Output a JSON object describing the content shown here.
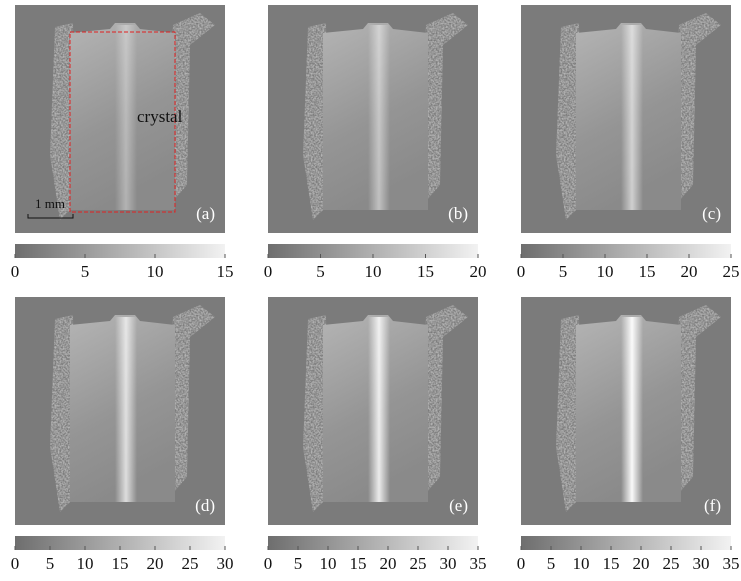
{
  "panels": [
    {
      "label": "(a)",
      "colorbar_ticks": [
        0,
        5,
        10,
        15
      ]
    },
    {
      "label": "(b)",
      "colorbar_ticks": [
        0,
        5,
        10,
        15,
        20
      ]
    },
    {
      "label": "(c)",
      "colorbar_ticks": [
        0,
        5,
        10,
        15,
        20,
        25
      ]
    },
    {
      "label": "(d)",
      "colorbar_ticks": [
        0,
        5,
        10,
        15,
        20,
        25,
        30
      ]
    },
    {
      "label": "(e)",
      "colorbar_ticks": [
        0,
        5,
        10,
        15,
        20,
        25,
        30,
        35
      ]
    },
    {
      "label": "(f)",
      "colorbar_ticks": [
        0,
        5,
        10,
        15,
        20,
        25,
        30,
        35
      ]
    }
  ],
  "annotation": "crystal",
  "scale_bar": "1 mm"
}
